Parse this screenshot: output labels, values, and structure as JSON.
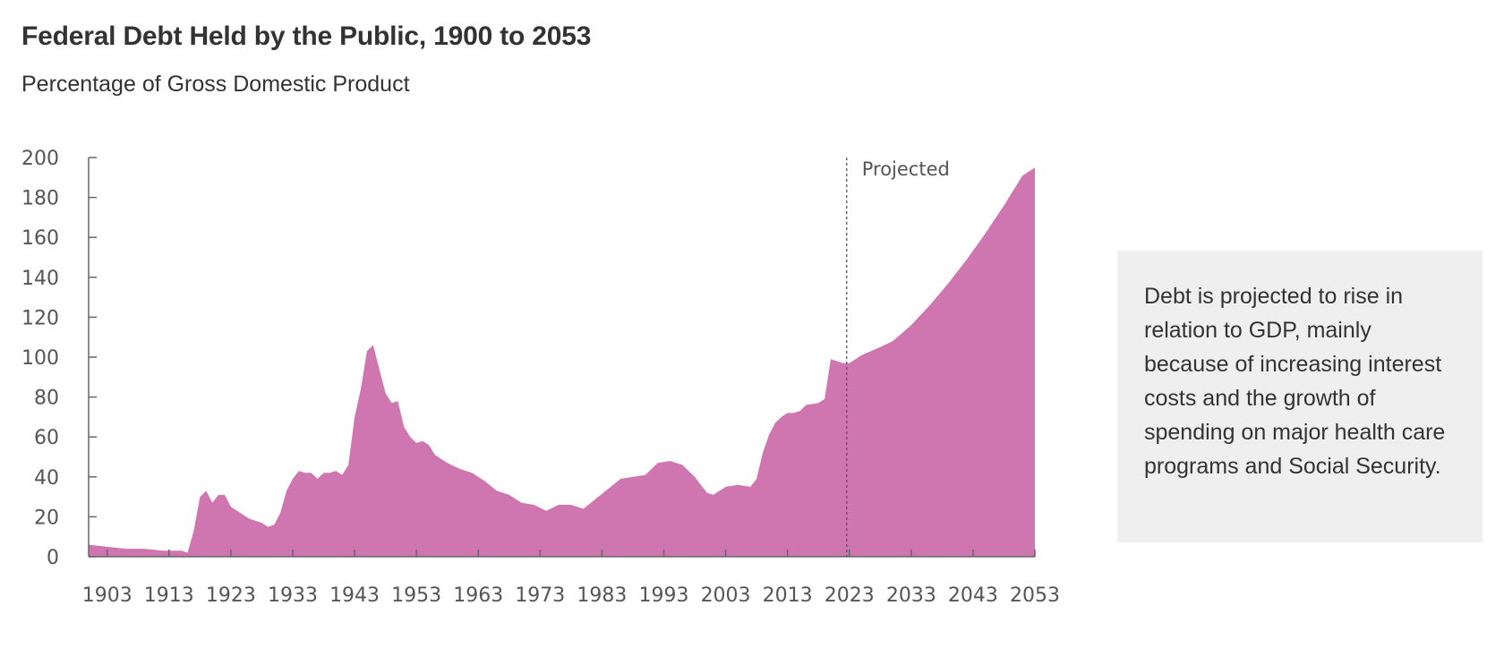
{
  "chart_data": {
    "type": "area",
    "title": "Federal Debt Held by the Public, 1900 to 2053",
    "subtitle": "Percentage of Gross Domestic Product",
    "xlabel": "",
    "ylabel": "",
    "xlim": [
      1900,
      2053
    ],
    "ylim": [
      0,
      200
    ],
    "y_ticks": [
      0,
      20,
      40,
      60,
      80,
      100,
      120,
      140,
      160,
      180,
      200
    ],
    "x_ticks": [
      1903,
      1913,
      1923,
      1933,
      1943,
      1953,
      1963,
      1973,
      1983,
      1993,
      2003,
      2013,
      2023,
      2033,
      2043,
      2053
    ],
    "projection_start": 2023,
    "projection_label": "Projected",
    "fill_color": "#cf76b1",
    "series": [
      {
        "name": "Federal debt held by the public",
        "x": [
          1900,
          1903,
          1906,
          1909,
          1912,
          1915,
          1916,
          1917,
          1918,
          1919,
          1920,
          1921,
          1922,
          1923,
          1924,
          1926,
          1928,
          1929,
          1930,
          1931,
          1932,
          1933,
          1934,
          1935,
          1936,
          1937,
          1938,
          1939,
          1940,
          1941,
          1942,
          1943,
          1944,
          1945,
          1946,
          1947,
          1948,
          1949,
          1950,
          1951,
          1952,
          1953,
          1954,
          1955,
          1956,
          1958,
          1960,
          1962,
          1964,
          1966,
          1968,
          1970,
          1972,
          1974,
          1976,
          1978,
          1980,
          1982,
          1984,
          1986,
          1988,
          1990,
          1992,
          1994,
          1996,
          1998,
          2000,
          2001,
          2003,
          2005,
          2007,
          2008,
          2009,
          2010,
          2011,
          2012,
          2013,
          2014,
          2015,
          2016,
          2018,
          2019,
          2020,
          2021,
          2022,
          2023,
          2025,
          2028,
          2030,
          2033,
          2036,
          2039,
          2042,
          2045,
          2048,
          2051,
          2053
        ],
        "values": [
          6,
          5,
          4,
          4,
          3,
          3,
          2,
          13,
          30,
          33,
          27,
          31,
          31,
          25,
          23,
          19,
          17,
          15,
          16,
          22,
          33,
          39,
          43,
          42,
          42,
          39,
          42,
          42,
          43,
          41,
          46,
          70,
          84,
          103,
          106,
          94,
          82,
          77,
          78,
          65,
          60,
          57,
          58,
          56,
          51,
          47,
          44,
          42,
          38,
          33,
          31,
          27,
          26,
          23,
          26,
          26,
          24,
          29,
          34,
          39,
          40,
          41,
          47,
          48,
          46,
          40,
          32,
          31,
          35,
          36,
          35,
          39,
          52,
          61,
          67,
          70,
          72,
          72,
          73,
          76,
          77,
          79,
          99,
          98,
          97,
          97,
          101,
          105,
          108,
          116,
          126,
          137,
          149,
          162,
          176,
          191,
          195
        ]
      }
    ]
  },
  "annotation": {
    "text": "Debt is projected to rise in relation to GDP, mainly because of increasing interest costs and the growth of spending on major health care programs and Social Security."
  }
}
